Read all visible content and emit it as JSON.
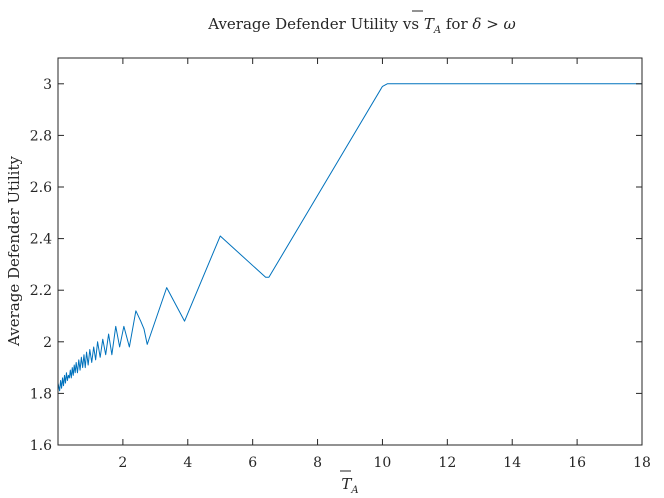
{
  "chart_data": {
    "type": "line",
    "title": "Average Defender Utility vs T̄_A for δ > ω",
    "title_parts": {
      "prefix": "Average Defender Utility vs ",
      "var_main": "T",
      "var_sub": "A",
      "mid": " for ",
      "delta": "δ",
      "rel": " > ",
      "omega": "ω"
    },
    "xlabel": "T̄_A",
    "xlabel_parts": {
      "main": "T",
      "sub": "A"
    },
    "ylabel": "Average Defender Utility",
    "xlim": [
      0,
      18
    ],
    "ylim": [
      1.6,
      3.1
    ],
    "xticks": [
      2,
      4,
      6,
      8,
      10,
      12,
      14,
      16,
      18
    ],
    "xtick_labels": [
      "2",
      "4",
      "6",
      "8",
      "10",
      "12",
      "14",
      "16",
      "18"
    ],
    "yticks": [
      1.6,
      1.8,
      2.0,
      2.2,
      2.4,
      2.6,
      2.8,
      3.0
    ],
    "ytick_labels": [
      "1.6",
      "1.8",
      "2",
      "2.2",
      "2.4",
      "2.6",
      "2.8",
      "3"
    ],
    "grid": false,
    "box": true,
    "series": [
      {
        "color": "#0072bd",
        "x": [
          0.0,
          0.05,
          0.08,
          0.11,
          0.14,
          0.17,
          0.2,
          0.23,
          0.26,
          0.29,
          0.32,
          0.35,
          0.38,
          0.41,
          0.44,
          0.47,
          0.5,
          0.53,
          0.56,
          0.6,
          0.64,
          0.68,
          0.72,
          0.76,
          0.8,
          0.84,
          0.88,
          0.93,
          0.98,
          1.04,
          1.1,
          1.16,
          1.22,
          1.3,
          1.38,
          1.47,
          1.56,
          1.66,
          1.78,
          1.9,
          2.03,
          2.2,
          2.4,
          2.55,
          2.65,
          2.75,
          3.35,
          3.9,
          5.0,
          6.4,
          6.5,
          10.0,
          10.15,
          18.0
        ],
        "y": [
          1.84,
          1.81,
          1.85,
          1.82,
          1.86,
          1.83,
          1.87,
          1.84,
          1.88,
          1.85,
          1.87,
          1.86,
          1.89,
          1.86,
          1.9,
          1.87,
          1.91,
          1.88,
          1.92,
          1.88,
          1.93,
          1.89,
          1.94,
          1.9,
          1.95,
          1.9,
          1.96,
          1.91,
          1.97,
          1.92,
          1.98,
          1.93,
          2.0,
          1.94,
          2.01,
          1.95,
          2.03,
          1.95,
          2.06,
          1.98,
          2.06,
          1.98,
          2.12,
          2.08,
          2.05,
          1.99,
          2.21,
          2.08,
          2.41,
          2.25,
          2.25,
          2.99,
          3.0,
          3.0
        ]
      }
    ]
  }
}
